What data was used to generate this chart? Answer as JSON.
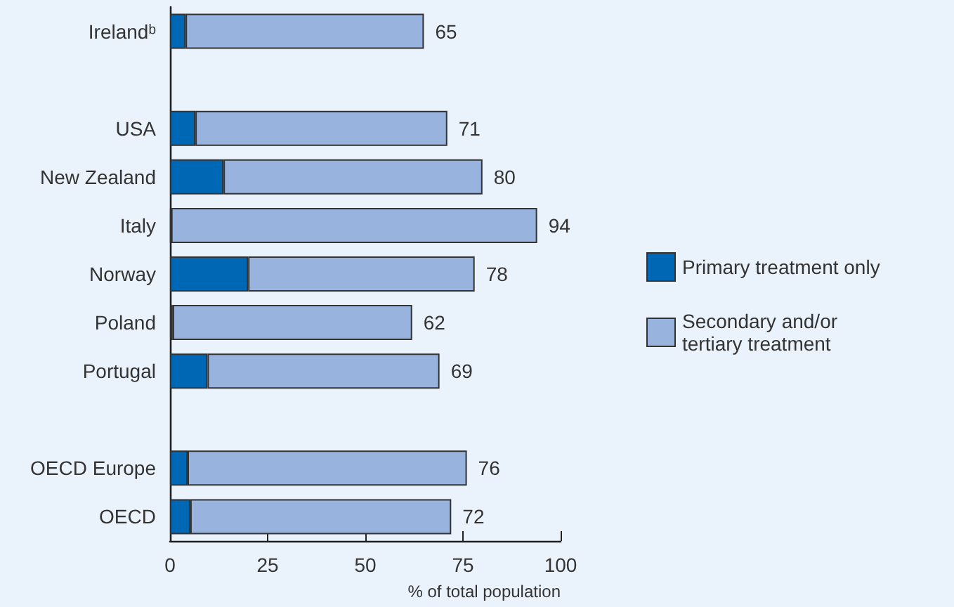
{
  "chart_data": {
    "type": "bar",
    "orientation": "horizontal",
    "stacked": true,
    "categories": [
      "Irelandᵇ",
      null,
      "USA",
      "New Zealand",
      "Italy",
      "Norway",
      "Poland",
      "Portugal",
      null,
      "OECD Europe",
      "OECD"
    ],
    "series": [
      {
        "name": "Primary treatment only",
        "color": "#0067b4",
        "values": [
          4,
          null,
          6.5,
          13.7,
          0.3,
          20,
          0.7,
          9.6,
          null,
          4.5,
          5.2
        ]
      },
      {
        "name": "Secondary and/or\ntertiary treatment",
        "color": "#98b3dd",
        "values": [
          61,
          null,
          64.5,
          66.3,
          93.7,
          58,
          61.3,
          59.4,
          null,
          71.5,
          66.8
        ]
      }
    ],
    "totals": [
      "65",
      null,
      "71",
      "80",
      "94",
      "78",
      "62",
      "69",
      null,
      "76",
      "72"
    ],
    "xlabel": "% of total population",
    "xlim": [
      0,
      100
    ],
    "xticks": [
      0,
      25,
      50,
      75,
      100
    ],
    "grid": false,
    "legend": "right"
  }
}
